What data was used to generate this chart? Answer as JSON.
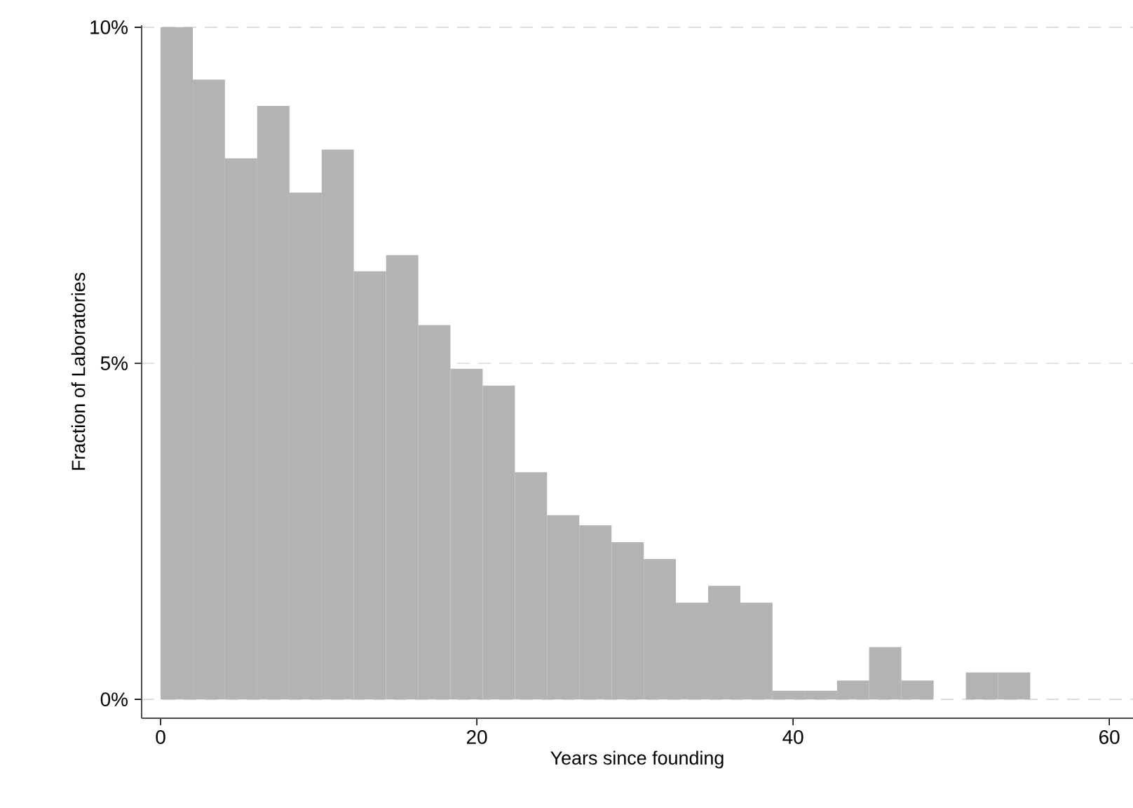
{
  "chart_data": {
    "type": "histogram",
    "xlabel": "Years since founding",
    "ylabel": "Fraction of Laboratories",
    "bins": [
      0,
      2.04,
      4.07,
      6.11,
      8.15,
      10.19,
      12.22,
      14.26,
      16.3,
      18.33,
      20.37,
      22.41,
      24.44,
      26.48,
      28.52,
      30.56,
      32.59,
      34.63,
      36.67,
      38.7,
      40.74,
      42.78,
      44.81,
      46.85,
      48.89,
      50.93,
      52.96,
      55
    ],
    "values": [
      10.0,
      9.22,
      8.05,
      8.83,
      7.54,
      8.18,
      6.37,
      6.61,
      5.57,
      4.92,
      4.67,
      3.38,
      2.74,
      2.59,
      2.34,
      2.09,
      1.44,
      1.69,
      1.44,
      0.13,
      0.13,
      0.28,
      0.78,
      0.28,
      0,
      0.4,
      0.4
    ],
    "color": "#b3b3b3",
    "xlim": [
      -1.2,
      61.5
    ],
    "ylim": [
      -0.28,
      10.03
    ],
    "xticks": [
      0,
      20,
      40,
      60
    ],
    "yticks": [
      {
        "value": 0,
        "label": "0%"
      },
      {
        "value": 5,
        "label": "5%"
      },
      {
        "value": 10,
        "label": "10%"
      }
    ],
    "grid": "y"
  }
}
